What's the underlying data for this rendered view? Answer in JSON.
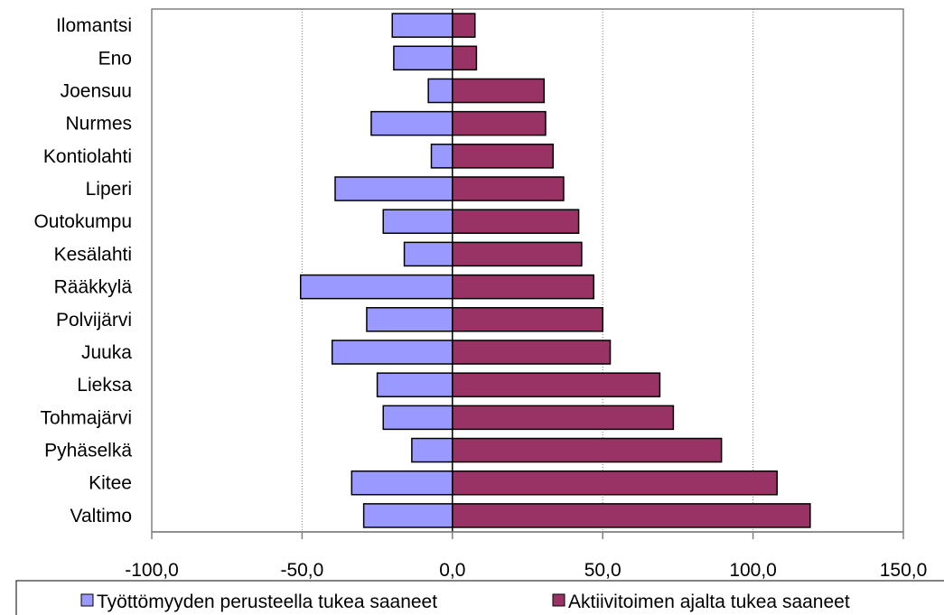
{
  "chart_data": {
    "type": "bar",
    "orientation": "horizontal",
    "categories": [
      "Ilomantsi",
      "Eno",
      "Joensuu",
      "Nurmes",
      "Kontiolahti",
      "Liperi",
      "Outokumpu",
      "Kesälahti",
      "Rääkkylä",
      "Polvijärvi",
      "Juuka",
      "Lieksa",
      "Tohmajärvi",
      "Pyhäselkä",
      "Kitee",
      "Valtimo"
    ],
    "series": [
      {
        "name": "Työttömyyden perusteella tukea saaneet",
        "color": "#9999ff",
        "values": [
          -20,
          -19.5,
          -8,
          -27,
          -7,
          -39,
          -23,
          -16,
          -50.5,
          -28.5,
          -40,
          -25,
          -23,
          -13.5,
          -33.5,
          -29.5
        ]
      },
      {
        "name": "Aktiivitoimen ajalta tukea saaneet",
        "color": "#993366",
        "values": [
          7.5,
          8,
          30.5,
          31,
          33.5,
          37,
          42,
          43,
          47,
          50,
          52.5,
          69,
          73.5,
          89.5,
          108,
          119
        ]
      }
    ],
    "xlim": [
      -100,
      150
    ],
    "xticks": [
      "-100,0",
      "-50,0",
      "0,0",
      "50,0",
      "100,0",
      "150,0"
    ],
    "xtick_values": [
      -100,
      -50,
      0,
      50,
      100,
      150
    ],
    "grid": "vertical",
    "legend": "bottom"
  }
}
